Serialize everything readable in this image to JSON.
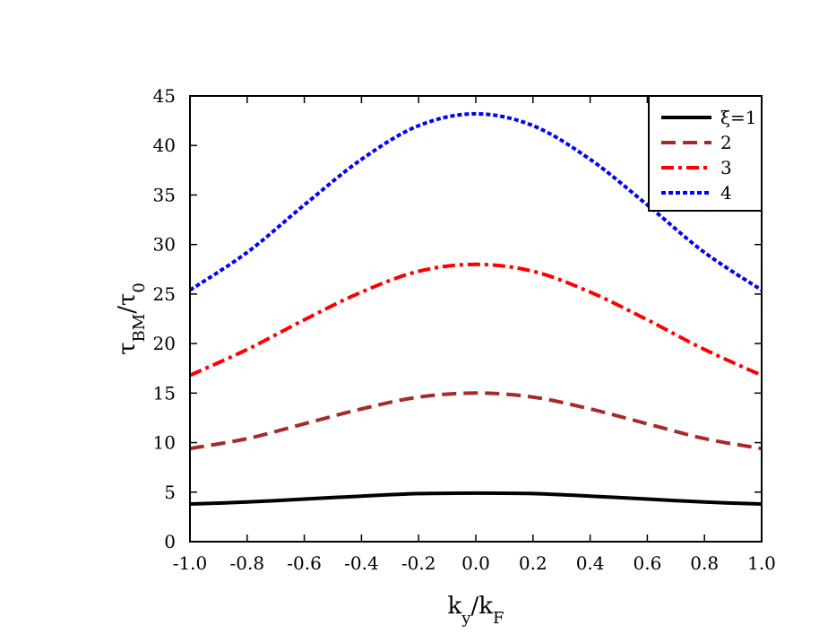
{
  "chart_data": {
    "type": "line",
    "title": "",
    "xlabel": "k_y/k_F",
    "ylabel": "τ_BM/τ_0",
    "xlim": [
      -1.0,
      1.0
    ],
    "ylim": [
      0,
      45
    ],
    "x_ticks": [
      "-1.0",
      "-0.8",
      "-0.6",
      "-0.4",
      "-0.2",
      "0.0",
      "0.2",
      "0.4",
      "0.6",
      "0.8",
      "1.0"
    ],
    "y_ticks": [
      "0",
      "5",
      "10",
      "15",
      "20",
      "25",
      "30",
      "35",
      "40",
      "45"
    ],
    "grid": false,
    "legend_position": "top-right",
    "x": [
      -1.0,
      -0.8,
      -0.6,
      -0.4,
      -0.2,
      0.0,
      0.2,
      0.4,
      0.6,
      0.8,
      1.0
    ],
    "series": [
      {
        "name": "ξ=1",
        "color": "#000000",
        "dash": "solid",
        "values": [
          3.8,
          4.0,
          4.3,
          4.6,
          4.85,
          4.9,
          4.85,
          4.6,
          4.3,
          4.0,
          3.8
        ]
      },
      {
        "name": "2",
        "color": "#a52a2a",
        "dash": "dashed",
        "values": [
          9.4,
          10.4,
          11.9,
          13.4,
          14.6,
          15.0,
          14.6,
          13.4,
          11.9,
          10.4,
          9.4
        ]
      },
      {
        "name": "3",
        "color": "#ff0000",
        "dash": "dash-dot",
        "values": [
          16.8,
          19.4,
          22.4,
          25.2,
          27.3,
          28.0,
          27.3,
          25.2,
          22.4,
          19.4,
          16.8
        ]
      },
      {
        "name": "4",
        "color": "#0000ff",
        "dash": "dotted",
        "values": [
          25.4,
          29.2,
          34.0,
          38.6,
          42.0,
          43.2,
          42.0,
          38.6,
          34.0,
          29.2,
          25.4
        ]
      }
    ]
  }
}
